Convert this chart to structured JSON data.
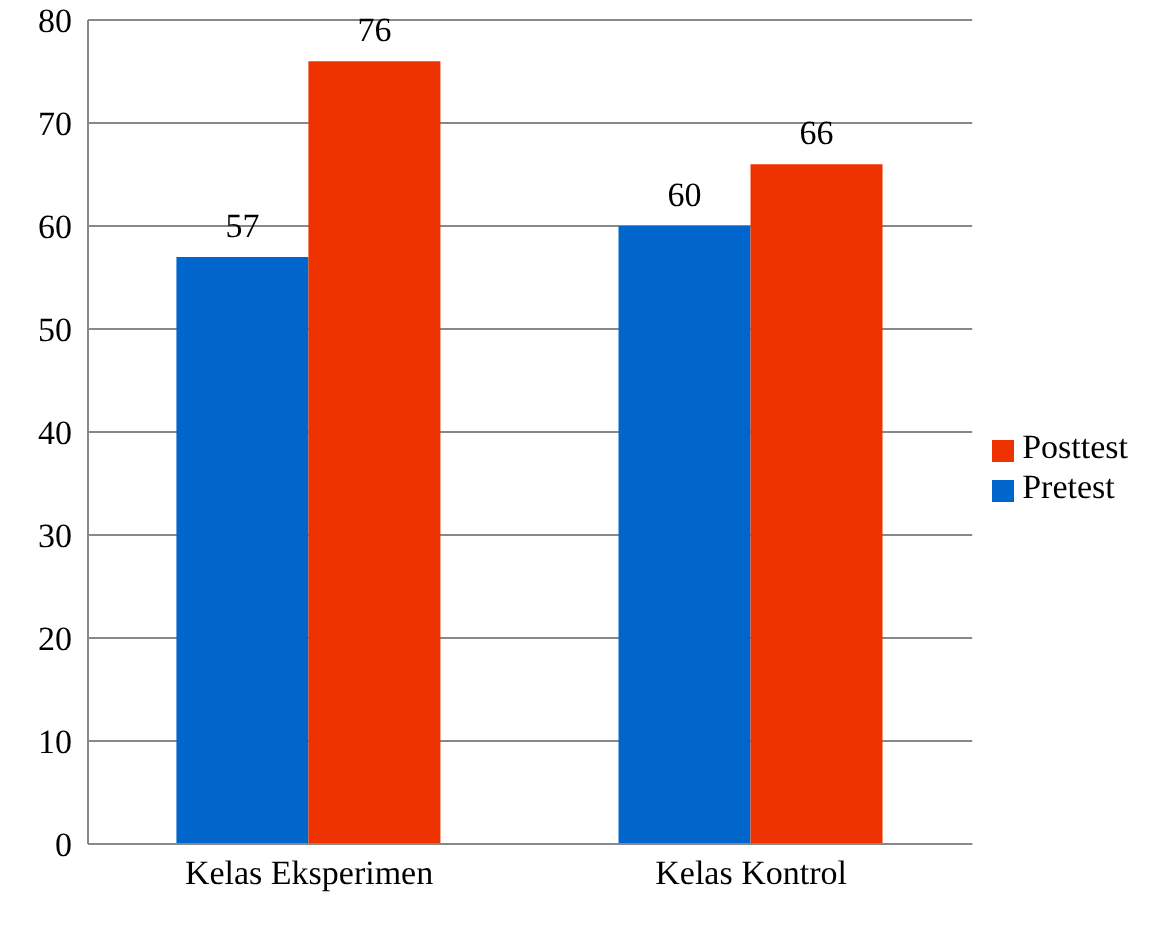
{
  "chart_data": {
    "type": "bar",
    "categories": [
      "Kelas Eksperimen",
      "Kelas Kontrol"
    ],
    "series": [
      {
        "name": "Pretest",
        "color": "#0066cc",
        "values": [
          57,
          60
        ]
      },
      {
        "name": "Posttest",
        "color": "#ee3300",
        "values": [
          76,
          66
        ]
      }
    ],
    "ylim": [
      0,
      80
    ],
    "yticks": [
      0,
      10,
      20,
      30,
      40,
      50,
      60,
      70,
      80
    ],
    "grid": "y",
    "legend": "right",
    "data_labels": true
  }
}
